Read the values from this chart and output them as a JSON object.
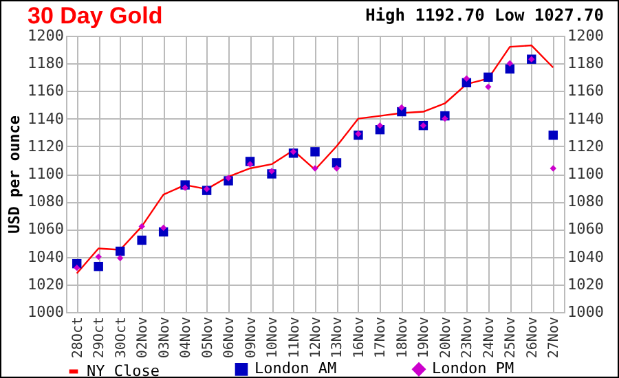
{
  "chart_data": {
    "type": "line",
    "title": "30 Day Gold",
    "annotations": [
      "High 1192.70 Low 1027.70"
    ],
    "ylabel": "USD per ounce",
    "categories": [
      "28Oct",
      "29Oct",
      "30Oct",
      "02Nov",
      "03Nov",
      "04Nov",
      "05Nov",
      "06Nov",
      "09Nov",
      "10Nov",
      "11Nov",
      "12Nov",
      "13Nov",
      "16Nov",
      "17Nov",
      "18Nov",
      "19Nov",
      "20Nov",
      "23Nov",
      "24Nov",
      "25Nov",
      "26Nov",
      "27Nov"
    ],
    "series": [
      {
        "name": "NY Close",
        "type": "line",
        "color": "#ff0000",
        "marker": "none",
        "values": [
          1028,
          1046,
          1045,
          1062,
          1085,
          1092,
          1089,
          1098,
          1104,
          1107,
          1117,
          1103,
          1120,
          1140,
          1142,
          1144,
          1145,
          1151,
          1165,
          1169,
          1192,
          1193,
          1177
        ]
      },
      {
        "name": "London AM",
        "type": "scatter",
        "color": "#0000c0",
        "marker": "square",
        "values": [
          1035,
          1033,
          1044,
          1052,
          1058,
          1092,
          1088,
          1095,
          1109,
          1100,
          1115,
          1116,
          1108,
          1128,
          1132,
          1145,
          1135,
          1142,
          1166,
          1170,
          1176,
          1183,
          1128
        ]
      },
      {
        "name": "London PM",
        "type": "scatter",
        "color": "#cc00cc",
        "marker": "diamond",
        "values": [
          1032,
          1040,
          1039,
          1062,
          1061,
          1090,
          1089,
          1097,
          1107,
          1102,
          1116,
          1104,
          1104,
          1129,
          1135,
          1148,
          1135,
          1140,
          1169,
          1163,
          1180,
          1183,
          1104
        ]
      }
    ],
    "ylim": [
      1000,
      1200
    ],
    "yticks": [
      1000,
      1020,
      1040,
      1060,
      1080,
      1100,
      1120,
      1140,
      1160,
      1180,
      1200
    ],
    "y2lim": [
      1000,
      1200
    ],
    "y2ticks": [
      1000,
      1020,
      1040,
      1060,
      1080,
      1100,
      1120,
      1140,
      1160,
      1180,
      1200
    ],
    "grid": true,
    "legend": "bottom"
  }
}
